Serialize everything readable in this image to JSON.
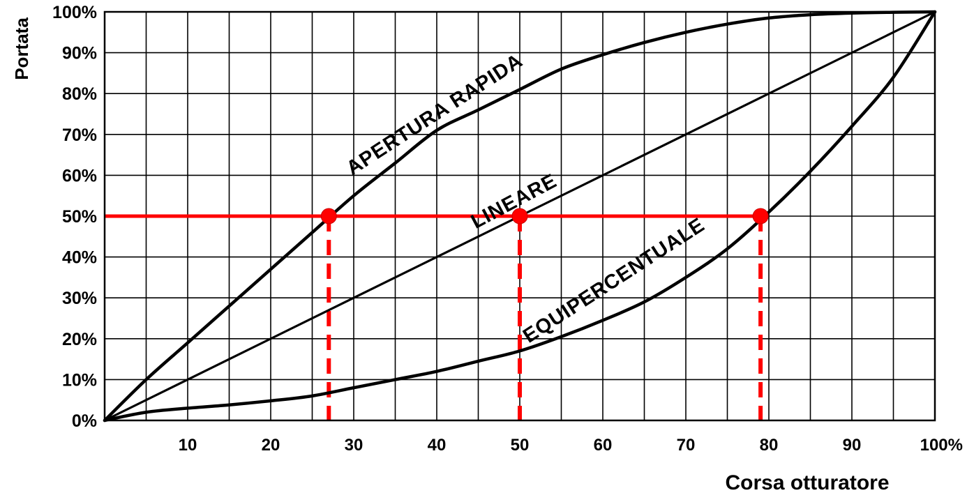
{
  "chart_data": {
    "type": "line",
    "xlabel": "Corsa otturatore",
    "ylabel": "Portata",
    "x_range": [
      0,
      100
    ],
    "y_range": [
      0,
      100
    ],
    "grid": true,
    "x_ticks": [
      {
        "value": 10,
        "label": "10"
      },
      {
        "value": 20,
        "label": "20"
      },
      {
        "value": 30,
        "label": "30"
      },
      {
        "value": 40,
        "label": "40"
      },
      {
        "value": 50,
        "label": "50"
      },
      {
        "value": 60,
        "label": "60"
      },
      {
        "value": 70,
        "label": "70"
      },
      {
        "value": 80,
        "label": "80"
      },
      {
        "value": 90,
        "label": "90"
      },
      {
        "value": 100,
        "label": "100%"
      }
    ],
    "y_ticks": [
      {
        "value": 0,
        "label": "0%"
      },
      {
        "value": 10,
        "label": "10%"
      },
      {
        "value": 20,
        "label": "20%"
      },
      {
        "value": 30,
        "label": "30%"
      },
      {
        "value": 40,
        "label": "40%"
      },
      {
        "value": 50,
        "label": "50%"
      },
      {
        "value": 60,
        "label": "60%"
      },
      {
        "value": 70,
        "label": "70%"
      },
      {
        "value": 80,
        "label": "80%"
      },
      {
        "value": 90,
        "label": "90%"
      },
      {
        "value": 100,
        "label": "100%"
      }
    ],
    "series": [
      {
        "name": "APERTURA RAPIDA",
        "color": "#000000",
        "x": [
          0,
          5,
          10,
          15,
          20,
          25,
          30,
          35,
          40,
          45,
          50,
          55,
          60,
          65,
          70,
          75,
          80,
          85,
          90,
          95,
          100
        ],
        "y": [
          0,
          10,
          19,
          28,
          37,
          46,
          55,
          63,
          71,
          76,
          81,
          86,
          89.5,
          92.5,
          95,
          97,
          98.5,
          99.3,
          99.7,
          99.9,
          100
        ]
      },
      {
        "name": "LINEARE",
        "color": "#000000",
        "x": [
          0,
          100
        ],
        "y": [
          0,
          100
        ]
      },
      {
        "name": "EQUIPERCENTUALE",
        "color": "#000000",
        "x": [
          0,
          5,
          10,
          15,
          20,
          25,
          30,
          35,
          40,
          45,
          50,
          55,
          60,
          65,
          70,
          75,
          80,
          85,
          90,
          95,
          100
        ],
        "y": [
          0,
          2,
          3,
          3.8,
          4.8,
          6,
          8,
          10,
          12,
          14.5,
          17,
          20.5,
          24.5,
          29,
          35,
          42,
          51,
          61,
          72,
          84,
          100
        ]
      }
    ],
    "reference_line": {
      "y": 50,
      "color": "#ff0000"
    },
    "marked_points": [
      {
        "x": 27,
        "y": 50,
        "color": "#ff0000"
      },
      {
        "x": 50,
        "y": 50,
        "color": "#ff0000"
      },
      {
        "x": 79,
        "y": 50,
        "color": "#ff0000"
      }
    ]
  }
}
